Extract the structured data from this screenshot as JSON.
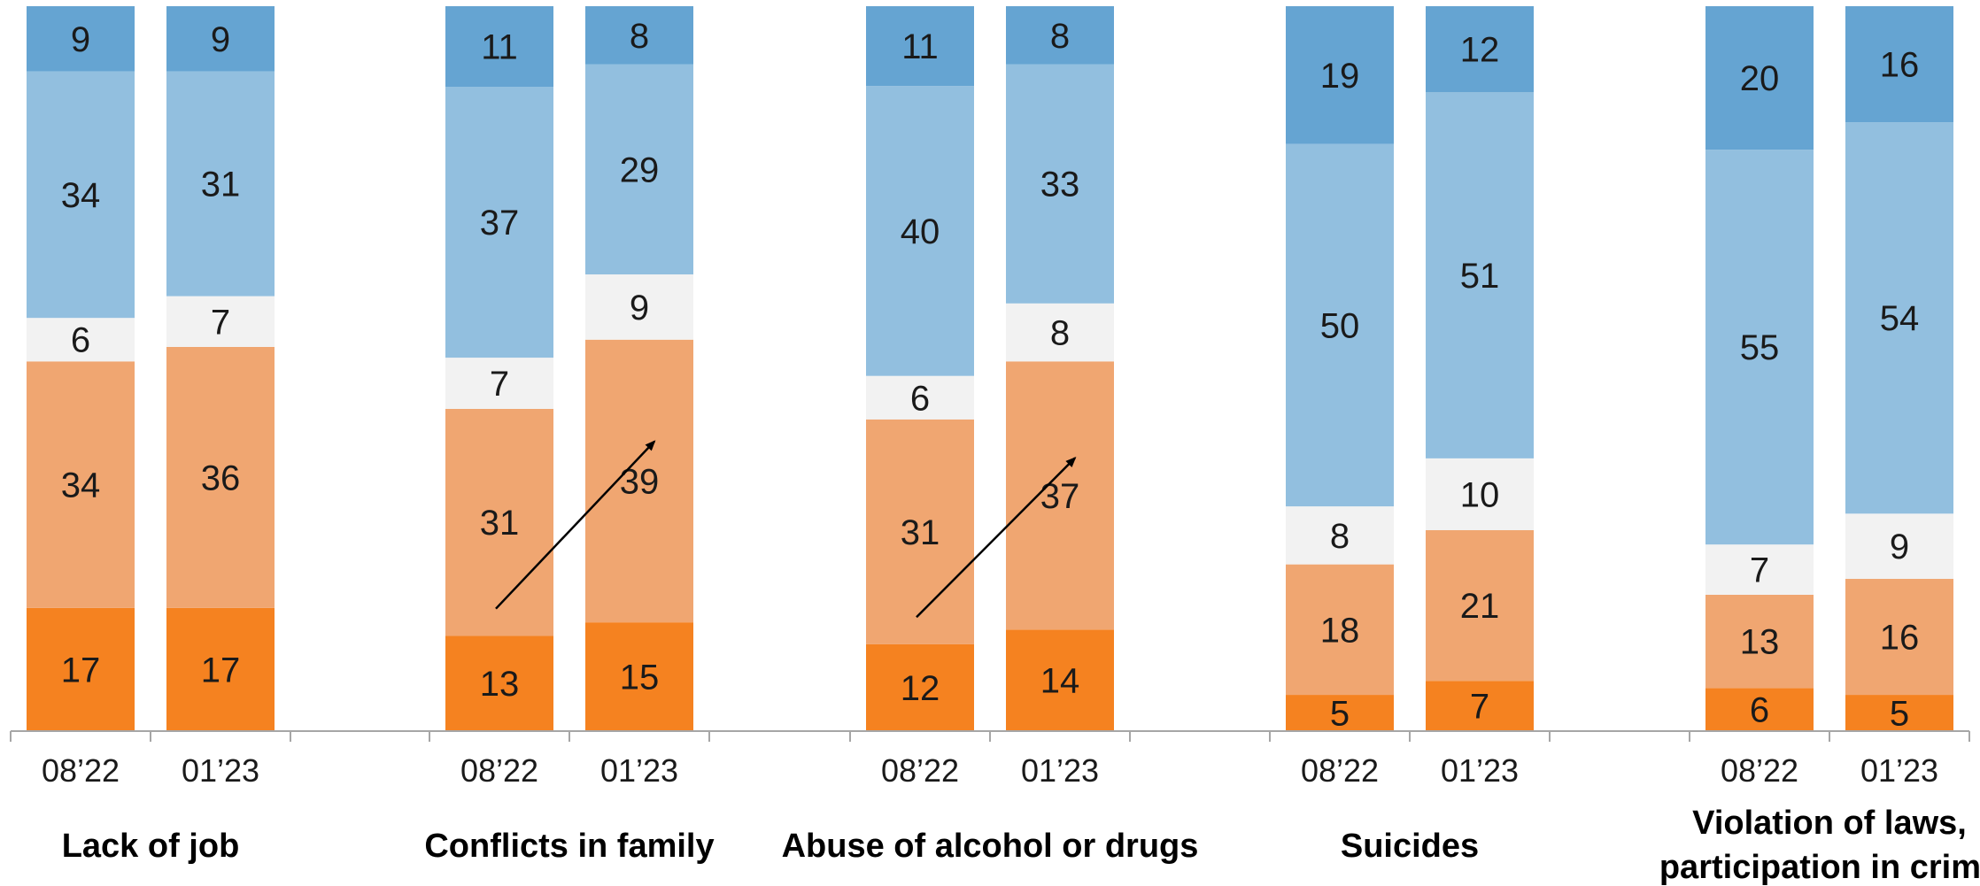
{
  "chart_data": {
    "type": "bar",
    "stacked": true,
    "orientation": "vertical",
    "stack_order_bottom_to_top": [
      "dark-orange",
      "light-orange",
      "neutral",
      "light-blue",
      "dark-blue"
    ],
    "colors": {
      "dark-orange": "#F58220",
      "light-orange": "#F0A671",
      "neutral": "#F2F2F2",
      "light-blue": "#92BFDF",
      "dark-blue": "#65A4D2",
      "arrow": "#000000",
      "axis": "#A6A6A6"
    },
    "groups": [
      {
        "label": "Lack of job",
        "bars": [
          {
            "period": "08’22",
            "values": [
              17,
              34,
              6,
              34,
              9
            ]
          },
          {
            "period": "01’23",
            "values": [
              17,
              36,
              7,
              31,
              9
            ]
          }
        ]
      },
      {
        "label": "Conflicts in family",
        "arrow": true,
        "bars": [
          {
            "period": "08’22",
            "values": [
              13,
              31,
              7,
              37,
              11
            ]
          },
          {
            "period": "01’23",
            "values": [
              15,
              39,
              9,
              29,
              8
            ]
          }
        ]
      },
      {
        "label": "Abuse of alcohol or drugs",
        "arrow": true,
        "bars": [
          {
            "period": "08’22",
            "values": [
              12,
              31,
              6,
              40,
              11
            ]
          },
          {
            "period": "01’23",
            "values": [
              14,
              37,
              8,
              33,
              8
            ]
          }
        ]
      },
      {
        "label": "Suicides",
        "bars": [
          {
            "period": "08’22",
            "values": [
              5,
              18,
              8,
              50,
              19
            ]
          },
          {
            "period": "01’23",
            "values": [
              7,
              21,
              10,
              51,
              12
            ]
          }
        ]
      },
      {
        "label": "Violation of laws, participation in crime",
        "label_lines": [
          "Violation of laws,",
          "participation in crime"
        ],
        "bars": [
          {
            "period": "08’22",
            "values": [
              6,
              13,
              7,
              55,
              20
            ]
          },
          {
            "period": "01’23",
            "values": [
              5,
              16,
              9,
              54,
              16
            ]
          }
        ]
      }
    ],
    "ylim": [
      0,
      100
    ],
    "grid": false,
    "legend": "none"
  }
}
